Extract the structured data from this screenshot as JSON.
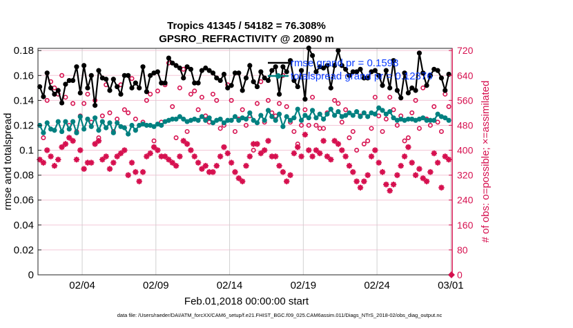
{
  "chart_data": {
    "type": "line",
    "title_line1": "Tropics 41345 / 54182 = 76.308%",
    "title_line2": "GPSRO_REFRACTIVITY @ 20890 m",
    "xlabel": "Feb.01,2018 00:00:00 start",
    "ylabel_left": "rmse and totalspread",
    "ylabel_right": "# of obs: o=possible; ×=assimilated",
    "footer": "data file: /Users/raeder/DAI/ATM_forcXX/CAM6_setup/f.e21.FHIST_BGC.f09_025.CAM6assim.011/Diags_NTrS_2018-02/obs_diag_output.nc",
    "x_unit": "days since Feb.01,2018 00:00",
    "x_step_days": 0.25,
    "xlim": [
      0,
      28.1
    ],
    "x_ticks": [
      {
        "day": 3,
        "label": "02/04"
      },
      {
        "day": 8,
        "label": "02/09"
      },
      {
        "day": 13,
        "label": "02/14"
      },
      {
        "day": 18,
        "label": "02/19"
      },
      {
        "day": 23,
        "label": "02/24"
      },
      {
        "day": 28,
        "label": "03/01"
      }
    ],
    "ylim_left": [
      0,
      0.1818
    ],
    "yticks_left": [
      "0",
      "0.02",
      "0.04",
      "0.06",
      "0.08",
      "0.1",
      "0.12",
      "0.14",
      "0.16",
      "0.18"
    ],
    "ylim_right": [
      0,
      727
    ],
    "yticks_right": [
      "0",
      "80",
      "160",
      "240",
      "320",
      "400",
      "480",
      "560",
      "640",
      "720"
    ],
    "legend": [
      {
        "label": "rmse grand pr = 0.1598",
        "color": "#000000"
      },
      {
        "label": "totalspread grand pr = 0.12376",
        "color": "#008080"
      }
    ],
    "legend_position": "top-right",
    "colors": {
      "rmse": "#000000",
      "spread": "#008080",
      "obs": "#d6104f",
      "legend_text": "#0a3cff",
      "grid_h": "#f3c6d6",
      "grid_v": "#d0d0d0"
    },
    "series": [
      {
        "name": "rmse",
        "axis": "left",
        "values": [
          0.151,
          0.143,
          0.162,
          0.15,
          0.145,
          0.148,
          0.138,
          0.153,
          0.156,
          0.156,
          0.167,
          0.146,
          0.168,
          0.15,
          0.16,
          0.136,
          0.164,
          0.158,
          0.157,
          0.148,
          0.157,
          0.151,
          0.145,
          0.16,
          0.16,
          0.15,
          0.154,
          0.15,
          0.167,
          0.147,
          0.16,
          0.162,
          0.163,
          0.154,
          0.154,
          0.174,
          0.17,
          0.168,
          0.166,
          0.158,
          0.167,
          0.165,
          0.154,
          0.154,
          0.164,
          0.166,
          0.164,
          0.162,
          0.158,
          0.156,
          0.161,
          0.15,
          0.152,
          0.162,
          0.162,
          0.148,
          0.158,
          0.168,
          0.155,
          0.151,
          0.163,
          0.158,
          0.156,
          0.164,
          0.167,
          0.145,
          0.167,
          0.163,
          0.172,
          0.156,
          0.151,
          0.164,
          0.141,
          0.182,
          0.176,
          0.163,
          0.167,
          0.166,
          0.168,
          0.15,
          0.168,
          0.18,
          0.168,
          0.165,
          0.16,
          0.163,
          0.163,
          0.165,
          0.158,
          0.158,
          0.163,
          0.164,
          0.16,
          0.152,
          0.164,
          0.15,
          0.172,
          0.148,
          0.142,
          0.162,
          0.146,
          0.15,
          0.148,
          0.178,
          0.162,
          0.152,
          0.16,
          0.165,
          0.164,
          0.158,
          0.148,
          0.161
        ]
      },
      {
        "name": "totalspread",
        "axis": "left",
        "values": [
          0.12,
          0.114,
          0.122,
          0.117,
          0.116,
          0.123,
          0.115,
          0.123,
          0.117,
          0.123,
          0.114,
          0.127,
          0.117,
          0.125,
          0.119,
          0.126,
          0.116,
          0.123,
          0.118,
          0.122,
          0.114,
          0.122,
          0.119,
          0.118,
          0.113,
          0.12,
          0.116,
          0.12,
          0.121,
          0.12,
          0.12,
          0.119,
          0.121,
          0.12,
          0.123,
          0.124,
          0.125,
          0.125,
          0.127,
          0.125,
          0.123,
          0.124,
          0.125,
          0.124,
          0.127,
          0.124,
          0.126,
          0.122,
          0.124,
          0.125,
          0.122,
          0.124,
          0.124,
          0.127,
          0.124,
          0.126,
          0.125,
          0.13,
          0.124,
          0.122,
          0.128,
          0.124,
          0.132,
          0.127,
          0.124,
          0.129,
          0.119,
          0.127,
          0.124,
          0.126,
          0.133,
          0.124,
          0.128,
          0.126,
          0.132,
          0.126,
          0.129,
          0.125,
          0.129,
          0.133,
          0.128,
          0.131,
          0.127,
          0.128,
          0.13,
          0.128,
          0.131,
          0.127,
          0.13,
          0.127,
          0.13,
          0.129,
          0.134,
          0.132,
          0.129,
          0.131,
          0.126,
          0.124,
          0.125,
          0.124,
          0.125,
          0.125,
          0.124,
          0.125,
          0.126,
          0.124,
          0.124,
          0.124,
          0.129,
          0.127,
          0.126,
          0.124
        ]
      },
      {
        "name": "possible obs",
        "axis": "right",
        "values": [
          480,
          440,
          560,
          620,
          600,
          580,
          640,
          570,
          480,
          550,
          460,
          510,
          550,
          580,
          490,
          560,
          440,
          510,
          610,
          520,
          460,
          500,
          610,
          530,
          520,
          630,
          500,
          600,
          490,
          560,
          580,
          430,
          590,
          490,
          610,
          680,
          540,
          440,
          600,
          660,
          460,
          580,
          590,
          530,
          570,
          510,
          490,
          580,
          560,
          470,
          480,
          610,
          560,
          460,
          500,
          530,
          480,
          510,
          400,
          550,
          620,
          490,
          560,
          520,
          510,
          550,
          640,
          540,
          490,
          460,
          420,
          480,
          530,
          480,
          570,
          480,
          470,
          470,
          520,
          600,
          560,
          550,
          490,
          530,
          440,
          460,
          400,
          510,
          420,
          430,
          470,
          570,
          510,
          460,
          500,
          570,
          530,
          480,
          510,
          430,
          440,
          520,
          560,
          470,
          600,
          500,
          480,
          540,
          490,
          460,
          580,
          540
        ]
      },
      {
        "name": "assimilated obs",
        "axis": "right",
        "values": [
          370,
          360,
          400,
          380,
          350,
          370,
          410,
          420,
          440,
          430,
          370,
          400,
          340,
          360,
          360,
          420,
          430,
          370,
          380,
          340,
          360,
          380,
          390,
          400,
          320,
          360,
          330,
          300,
          330,
          380,
          390,
          410,
          400,
          380,
          380,
          370,
          360,
          350,
          380,
          430,
          420,
          400,
          380,
          360,
          340,
          350,
          330,
          330,
          350,
          380,
          410,
          390,
          360,
          330,
          310,
          300,
          350,
          380,
          420,
          420,
          390,
          400,
          430,
          380,
          380,
          350,
          330,
          300,
          320,
          390,
          410,
          380,
          450,
          400,
          380,
          400,
          390,
          430,
          380,
          370,
          430,
          420,
          400,
          380,
          350,
          330,
          300,
          280,
          300,
          320,
          380,
          400,
          360,
          330,
          290,
          270,
          290,
          320,
          350,
          380,
          410,
          360,
          320,
          340,
          310,
          300,
          330,
          390,
          360,
          280,
          380,
          370
        ]
      }
    ],
    "annotations": [
      {
        "name": "zero-obs marker",
        "day": 28.05,
        "right_value": 0
      }
    ]
  }
}
